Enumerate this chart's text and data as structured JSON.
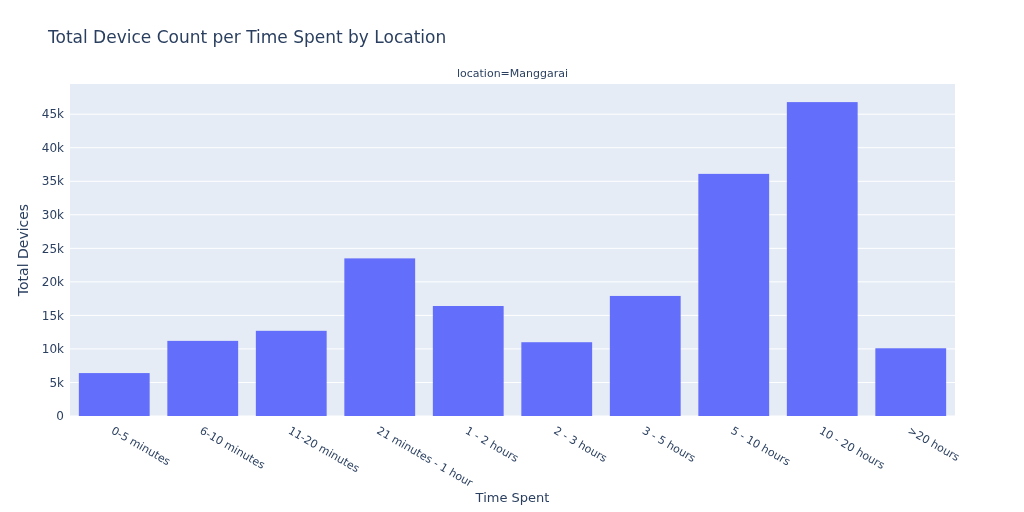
{
  "chart_data": {
    "type": "bar",
    "title": "Total Device Count per Time Spent by Location",
    "xlabel": "Time Spent",
    "ylabel": "Total Devices",
    "annotations": [
      "location=Manggarai"
    ],
    "categories": [
      "0-5 minutes",
      "6-10 minutes",
      "11-20 minutes",
      "21 minutes - 1 hour",
      "1 - 2 hours",
      "2 - 3 hours",
      "3 - 5 hours",
      "5 - 10 hours",
      "10 - 20 hours",
      ">20 hours"
    ],
    "series": [
      {
        "color": "#636efa",
        "values": [
          6400,
          11200,
          12700,
          23500,
          16400,
          11000,
          17900,
          36100,
          46800,
          10100
        ]
      }
    ],
    "ylim": [
      0,
      49500
    ],
    "yticks": [
      0,
      {
        "value": 5000,
        "label": "5k"
      },
      {
        "value": 10000,
        "label": "10k"
      },
      {
        "value": 15000,
        "label": "15k"
      },
      {
        "value": 20000,
        "label": "20k"
      },
      {
        "value": 25000,
        "label": "25k"
      },
      {
        "value": 30000,
        "label": "30k"
      },
      {
        "value": 35000,
        "label": "35k"
      },
      {
        "value": 40000,
        "label": "40k"
      },
      {
        "value": 45000,
        "label": "45k"
      }
    ],
    "grid": "y"
  }
}
